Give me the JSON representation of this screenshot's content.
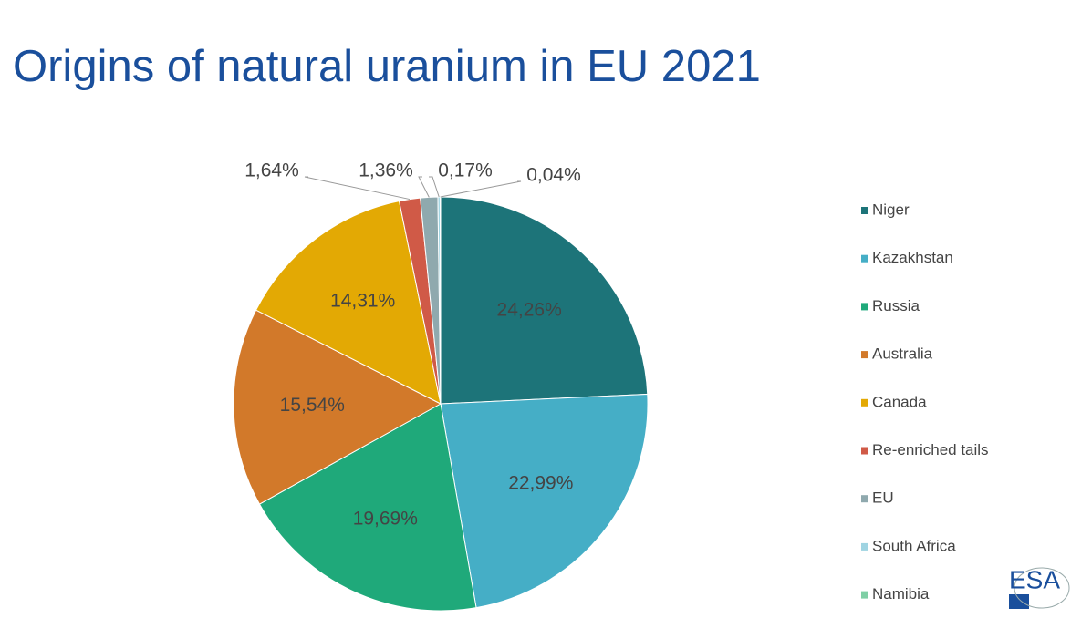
{
  "chart_data": {
    "type": "pie",
    "title": "Origins of natural uranium in EU 2021",
    "categories": [
      "Niger",
      "Kazakhstan",
      "Russia",
      "Australia",
      "Canada",
      "Re-enriched tails",
      "EU",
      "South Africa",
      "Namibia"
    ],
    "values": [
      24.26,
      22.99,
      19.69,
      15.54,
      14.31,
      1.64,
      1.36,
      0.17,
      0.04
    ],
    "value_labels": [
      "24,26%",
      "22,99%",
      "19,69%",
      "15,54%",
      "14,31%",
      "1,64%",
      "1,36%",
      "0,17%",
      "0,04%"
    ],
    "colors": [
      "#1d7479",
      "#45aec6",
      "#1fa97a",
      "#d2792a",
      "#e3a904",
      "#d05a47",
      "#8fa9ae",
      "#9fd4e2",
      "#7fcfa5"
    ],
    "legend": "right",
    "logo": "ESA"
  }
}
